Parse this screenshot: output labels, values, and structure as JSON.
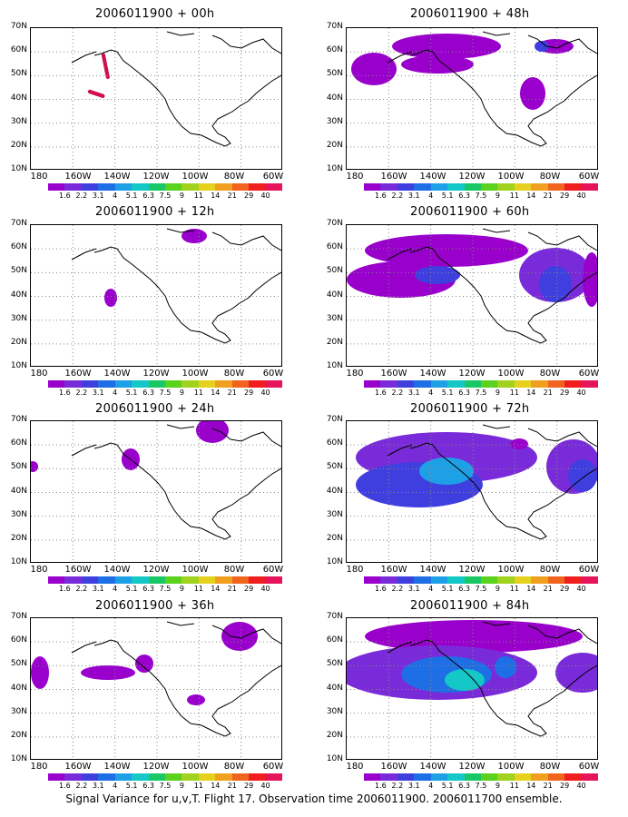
{
  "footer": "Signal Variance for u,v,T. Flight 17. Observation time 2006011900. 2006011700 ensemble.",
  "lat_labels": [
    "70N",
    "60N",
    "50N",
    "40N",
    "30N",
    "20N",
    "10N"
  ],
  "lon_labels": [
    "180",
    "160W",
    "140W",
    "120W",
    "100W",
    "80W",
    "60W"
  ],
  "colorbar": {
    "colors": [
      "#9900cc",
      "#7a2bd9",
      "#3f3fe0",
      "#1e6ee6",
      "#1ea0e6",
      "#14c8c8",
      "#19c864",
      "#5ad21e",
      "#a0d21e",
      "#e6d21e",
      "#f0a01e",
      "#f0641e",
      "#f01e1e",
      "#e6145a"
    ],
    "labels": [
      "1.6",
      "2.2",
      "3.1",
      "4",
      "5.1",
      "6.3",
      "7.5",
      "9",
      "11",
      "14",
      "21",
      "29",
      "40"
    ]
  },
  "panels": [
    {
      "title": "2006011900 + 00h"
    },
    {
      "title": "2006011900 + 48h"
    },
    {
      "title": "2006011900 + 12h"
    },
    {
      "title": "2006011900 + 60h"
    },
    {
      "title": "2006011900 + 24h"
    },
    {
      "title": "2006011900 + 72h"
    },
    {
      "title": "2006011900 + 36h"
    },
    {
      "title": "2006011900 + 84h"
    }
  ]
}
